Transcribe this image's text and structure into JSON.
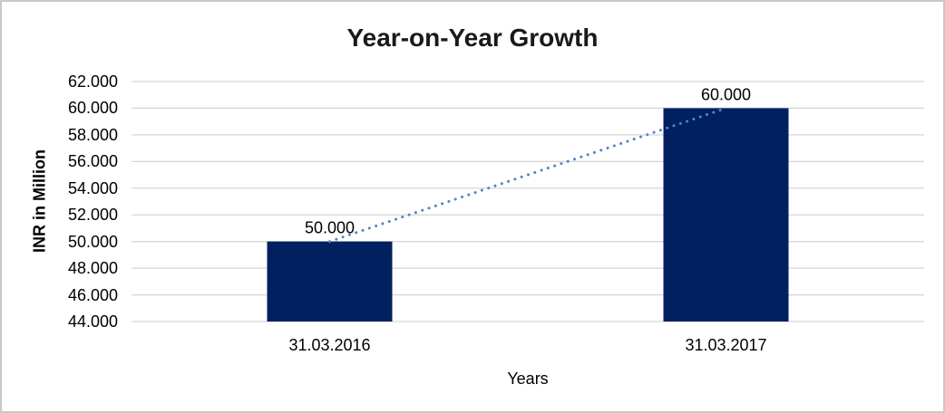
{
  "chart_data": {
    "type": "bar",
    "title": "Year-on-Year Growth",
    "xlabel": "Years",
    "ylabel": "INR in Million",
    "categories": [
      "31.03.2016",
      "31.03.2017"
    ],
    "values": [
      50000,
      60000
    ],
    "data_labels": [
      "50.000",
      "60.000"
    ],
    "ylim": [
      44000,
      62000
    ],
    "ytick_step": 2000,
    "ytick_labels": [
      "44.000",
      "46.000",
      "48.000",
      "50.000",
      "52.000",
      "54.000",
      "56.000",
      "58.000",
      "60.000",
      "62.000"
    ],
    "grid": true,
    "legend": "none",
    "trendline": {
      "style": "dotted",
      "from_point": {
        "category": "31.03.2016",
        "value": 50000
      },
      "to_point": {
        "category": "31.03.2017",
        "value": 60000
      }
    },
    "colors": {
      "bar": "#002060",
      "trendline": "#4f86c6",
      "gridline": "#d6d6d6",
      "title_text": "#1a1a1a",
      "axis_text": "#000000",
      "frame_border": "#c9c9c9"
    }
  }
}
